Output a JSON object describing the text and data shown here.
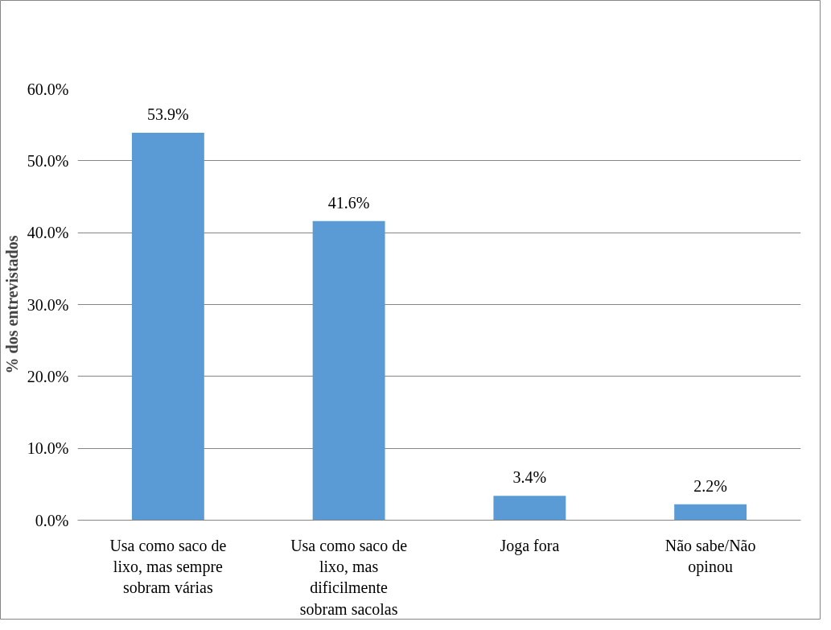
{
  "chart_data": {
    "type": "bar",
    "ylabel": "% dos entrevistados",
    "categories": [
      "Usa como saco de lixo, mas sempre sobram várias",
      "Usa como saco de lixo, mas dificilmente sobram sacolas",
      "Joga fora",
      "Não sabe/Não opinou"
    ],
    "values": [
      53.9,
      41.6,
      3.4,
      2.2
    ],
    "value_labels": [
      "53.9%",
      "41.6%",
      "3.4%",
      "2.2%"
    ],
    "color": "#5b9bd5",
    "ylim": [
      0,
      60
    ],
    "yticks": [
      {
        "value": 0,
        "label": "0.0%"
      },
      {
        "value": 10,
        "label": "10.0%"
      },
      {
        "value": 20,
        "label": "20.0%"
      },
      {
        "value": 30,
        "label": "30.0%"
      },
      {
        "value": 40,
        "label": "40.0%"
      },
      {
        "value": 50,
        "label": "50.0%"
      },
      {
        "value": 60,
        "label": "60.0%"
      }
    ],
    "grid": "y"
  }
}
